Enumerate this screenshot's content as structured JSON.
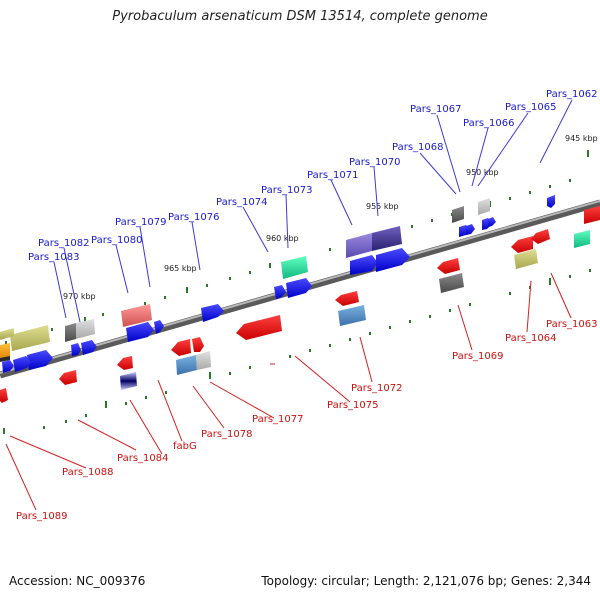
{
  "title": "Pyrobaculum arsenaticum DSM 13514, complete genome",
  "footer": {
    "accession": "Accession: NC_009376",
    "topology": "Topology: circular; Length: 2,121,076 bp; Genes: 2,344"
  },
  "colors": {
    "backbone": "#7a7a7a",
    "forward_label": "#1a1acc",
    "reverse_label": "#cc1111",
    "tick": "#2a7a2a"
  },
  "scale_labels": [
    "945 kbp",
    "950 kbp",
    "955 kbp",
    "960 kbp",
    "965 kbp",
    "970 kbp"
  ],
  "forward_gene_labels": [
    "Pars_1062",
    "Pars_1065",
    "Pars_1066",
    "Pars_1067",
    "Pars_1068",
    "Pars_1070",
    "Pars_1071",
    "Pars_1073",
    "Pars_1074",
    "Pars_1076",
    "Pars_1079",
    "Pars_1080",
    "Pars_1082",
    "Pars_1083"
  ],
  "reverse_gene_labels": [
    "Pars_1063",
    "Pars_1064",
    "Pars_1069",
    "Pars_1072",
    "Pars_1075",
    "Pars_1077",
    "Pars_1078",
    "fabG",
    "Pars_1084",
    "Pars_1088",
    "Pars_1089"
  ]
}
